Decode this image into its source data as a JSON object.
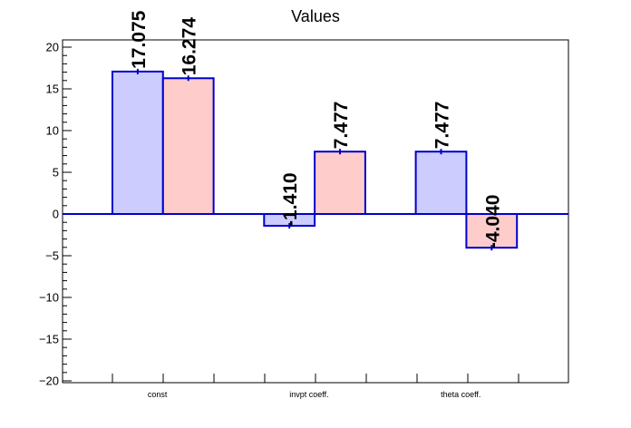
{
  "chart_data": {
    "type": "bar",
    "title": "Values",
    "xlabel": "",
    "ylabel": "",
    "categories": [
      "const",
      "invpt coeff.",
      "theta coeff."
    ],
    "series": [
      {
        "values": [
          17.075,
          -1.41,
          7.477
        ],
        "labels": [
          "17.075",
          "-1.410",
          "7.477"
        ],
        "color": "#ccccff"
      },
      {
        "values": [
          16.274,
          7.477,
          -4.04
        ],
        "labels": [
          "16.274",
          "7.477",
          "-4.040"
        ],
        "color": "#ffcccc"
      }
    ],
    "ylim": [
      -20,
      20
    ],
    "y_ticks": [
      "−20",
      "−15",
      "−10",
      "−5",
      "0",
      "5",
      "10",
      "15",
      "20"
    ],
    "grid": false,
    "outline_color": "#0000cc"
  }
}
